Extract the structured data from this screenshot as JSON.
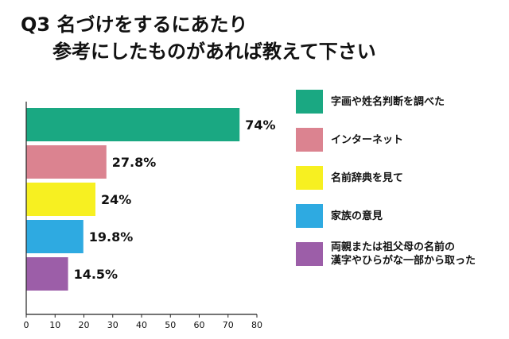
{
  "title_line1": "Q3 名づけをするにあたり",
  "title_line2": "参考にしたものがあれば教えて下さい",
  "chart_data": {
    "type": "bar",
    "orientation": "horizontal",
    "categories": [
      "字画や姓名判断を調べた",
      "インターネット",
      "名前辞典を見て",
      "家族の意見",
      "両親または祖父母の名前の\n漢字やひらがな一部から取った"
    ],
    "values": [
      74,
      27.8,
      24,
      19.8,
      14.5
    ],
    "value_labels": [
      "74%",
      "27.8%",
      "24%",
      "19.8%",
      "14.5%"
    ],
    "colors": [
      "#1aa882",
      "#db8390",
      "#f7f021",
      "#2eaae1",
      "#9c5ea8"
    ],
    "xlim": [
      0,
      80
    ],
    "xticks": [
      "0",
      "10",
      "20",
      "30",
      "40",
      "50",
      "60",
      "70",
      "80"
    ],
    "grid": false,
    "legend_position": "right"
  }
}
